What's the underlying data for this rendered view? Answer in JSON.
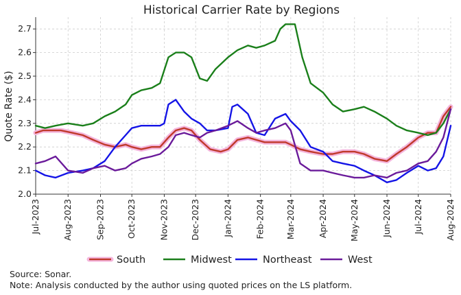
{
  "chart_data": {
    "type": "line",
    "title": "Historical Carrier Rate by Regions",
    "xlabel": "",
    "ylabel": "Quote Rate ($)",
    "ylim": [
      2.0,
      2.75
    ],
    "yticks": [
      2.0,
      2.1,
      2.2,
      2.3,
      2.4,
      2.5,
      2.6,
      2.7
    ],
    "xlim": [
      "2023-07-01",
      "2024-08-01"
    ],
    "xticks": [
      "Jul-2023",
      "Aug-2023",
      "Sep-2023",
      "Oct-2023",
      "Nov-2023",
      "Dec-2023",
      "Jan-2024",
      "Feb-2024",
      "Mar-2024",
      "Apr-2024",
      "May-2024",
      "Jun-2024",
      "Jul-2024",
      "Aug-2024"
    ],
    "grid": true,
    "legend_position": "bottom",
    "series": [
      {
        "name": "South",
        "color": "#c0392b",
        "halo": "#f4b6dd",
        "x": [
          "2023-07-01",
          "2023-07-08",
          "2023-07-15",
          "2023-07-25",
          "2023-08-05",
          "2023-08-15",
          "2023-08-25",
          "2023-09-05",
          "2023-09-15",
          "2023-09-25",
          "2023-10-01",
          "2023-10-10",
          "2023-10-20",
          "2023-10-28",
          "2023-11-05",
          "2023-11-12",
          "2023-11-20",
          "2023-11-27",
          "2023-12-05",
          "2023-12-15",
          "2023-12-25",
          "2024-01-01",
          "2024-01-10",
          "2024-01-20",
          "2024-01-28",
          "2024-02-05",
          "2024-02-15",
          "2024-02-25",
          "2024-03-01",
          "2024-03-10",
          "2024-03-20",
          "2024-04-01",
          "2024-04-10",
          "2024-04-20",
          "2024-05-01",
          "2024-05-10",
          "2024-05-20",
          "2024-06-01",
          "2024-06-10",
          "2024-06-20",
          "2024-07-01",
          "2024-07-10",
          "2024-07-18",
          "2024-07-25",
          "2024-08-01"
        ],
        "y": [
          2.26,
          2.27,
          2.27,
          2.27,
          2.26,
          2.25,
          2.23,
          2.21,
          2.2,
          2.21,
          2.2,
          2.19,
          2.2,
          2.2,
          2.24,
          2.27,
          2.28,
          2.27,
          2.23,
          2.19,
          2.18,
          2.19,
          2.23,
          2.24,
          2.23,
          2.22,
          2.22,
          2.22,
          2.21,
          2.19,
          2.18,
          2.17,
          2.17,
          2.18,
          2.18,
          2.17,
          2.15,
          2.14,
          2.17,
          2.2,
          2.24,
          2.26,
          2.26,
          2.33,
          2.37
        ]
      },
      {
        "name": "Midwest",
        "color": "#1a7f1a",
        "x": [
          "2023-07-01",
          "2023-07-10",
          "2023-07-20",
          "2023-08-01",
          "2023-08-15",
          "2023-08-25",
          "2023-09-05",
          "2023-09-15",
          "2023-09-25",
          "2023-10-01",
          "2023-10-10",
          "2023-10-20",
          "2023-10-28",
          "2023-11-05",
          "2023-11-12",
          "2023-11-20",
          "2023-11-27",
          "2023-12-05",
          "2023-12-12",
          "2023-12-20",
          "2024-01-01",
          "2024-01-10",
          "2024-01-20",
          "2024-01-28",
          "2024-02-05",
          "2024-02-15",
          "2024-02-20",
          "2024-02-25",
          "2024-03-05",
          "2024-03-12",
          "2024-03-20",
          "2024-04-01",
          "2024-04-10",
          "2024-04-20",
          "2024-05-01",
          "2024-05-10",
          "2024-05-20",
          "2024-06-01",
          "2024-06-10",
          "2024-06-20",
          "2024-07-01",
          "2024-07-10",
          "2024-07-18",
          "2024-07-25",
          "2024-08-01"
        ],
        "y": [
          2.29,
          2.28,
          2.29,
          2.3,
          2.29,
          2.3,
          2.33,
          2.35,
          2.38,
          2.42,
          2.44,
          2.45,
          2.47,
          2.58,
          2.6,
          2.6,
          2.58,
          2.49,
          2.48,
          2.53,
          2.58,
          2.61,
          2.63,
          2.62,
          2.63,
          2.65,
          2.7,
          2.72,
          2.72,
          2.58,
          2.47,
          2.43,
          2.38,
          2.35,
          2.36,
          2.37,
          2.35,
          2.32,
          2.29,
          2.27,
          2.26,
          2.25,
          2.26,
          2.3,
          2.36
        ]
      },
      {
        "name": "Northeast",
        "color": "#1414e6",
        "x": [
          "2023-07-01",
          "2023-07-10",
          "2023-07-20",
          "2023-08-01",
          "2023-08-15",
          "2023-08-25",
          "2023-09-05",
          "2023-09-15",
          "2023-09-25",
          "2023-10-01",
          "2023-10-10",
          "2023-10-20",
          "2023-10-28",
          "2023-11-01",
          "2023-11-05",
          "2023-11-12",
          "2023-11-20",
          "2023-11-27",
          "2023-12-05",
          "2023-12-12",
          "2023-12-20",
          "2024-01-01",
          "2024-01-05",
          "2024-01-10",
          "2024-01-20",
          "2024-01-28",
          "2024-02-05",
          "2024-02-15",
          "2024-02-25",
          "2024-03-01",
          "2024-03-10",
          "2024-03-20",
          "2024-04-01",
          "2024-04-10",
          "2024-04-20",
          "2024-05-01",
          "2024-05-10",
          "2024-05-20",
          "2024-06-01",
          "2024-06-10",
          "2024-06-20",
          "2024-07-01",
          "2024-07-10",
          "2024-07-18",
          "2024-07-25",
          "2024-08-01"
        ],
        "y": [
          2.1,
          2.08,
          2.07,
          2.09,
          2.1,
          2.11,
          2.14,
          2.2,
          2.25,
          2.28,
          2.29,
          2.29,
          2.29,
          2.3,
          2.38,
          2.4,
          2.35,
          2.32,
          2.3,
          2.27,
          2.27,
          2.28,
          2.37,
          2.38,
          2.34,
          2.26,
          2.25,
          2.32,
          2.34,
          2.31,
          2.27,
          2.2,
          2.18,
          2.14,
          2.13,
          2.12,
          2.1,
          2.08,
          2.05,
          2.06,
          2.09,
          2.12,
          2.1,
          2.11,
          2.16,
          2.29
        ]
      },
      {
        "name": "West",
        "color": "#6a1a9a",
        "x": [
          "2023-07-01",
          "2023-07-10",
          "2023-07-20",
          "2023-08-01",
          "2023-08-15",
          "2023-08-25",
          "2023-09-05",
          "2023-09-15",
          "2023-09-25",
          "2023-10-01",
          "2023-10-10",
          "2023-10-20",
          "2023-10-28",
          "2023-11-05",
          "2023-11-12",
          "2023-11-20",
          "2023-11-27",
          "2023-12-05",
          "2023-12-12",
          "2023-12-20",
          "2024-01-01",
          "2024-01-10",
          "2024-01-20",
          "2024-01-28",
          "2024-02-05",
          "2024-02-15",
          "2024-02-25",
          "2024-03-01",
          "2024-03-10",
          "2024-03-20",
          "2024-04-01",
          "2024-04-10",
          "2024-04-20",
          "2024-05-01",
          "2024-05-10",
          "2024-05-20",
          "2024-06-01",
          "2024-06-10",
          "2024-06-20",
          "2024-07-01",
          "2024-07-10",
          "2024-07-18",
          "2024-07-25",
          "2024-08-01"
        ],
        "y": [
          2.13,
          2.14,
          2.16,
          2.1,
          2.09,
          2.11,
          2.12,
          2.1,
          2.11,
          2.13,
          2.15,
          2.16,
          2.17,
          2.2,
          2.25,
          2.26,
          2.25,
          2.24,
          2.26,
          2.27,
          2.29,
          2.31,
          2.28,
          2.26,
          2.27,
          2.28,
          2.3,
          2.27,
          2.13,
          2.1,
          2.1,
          2.09,
          2.08,
          2.07,
          2.07,
          2.08,
          2.07,
          2.09,
          2.1,
          2.13,
          2.14,
          2.18,
          2.24,
          2.36
        ]
      }
    ],
    "notes": [
      "Source: Sonar.",
      "Note: Analysis conducted by the author using quoted prices on the LS platform."
    ]
  }
}
